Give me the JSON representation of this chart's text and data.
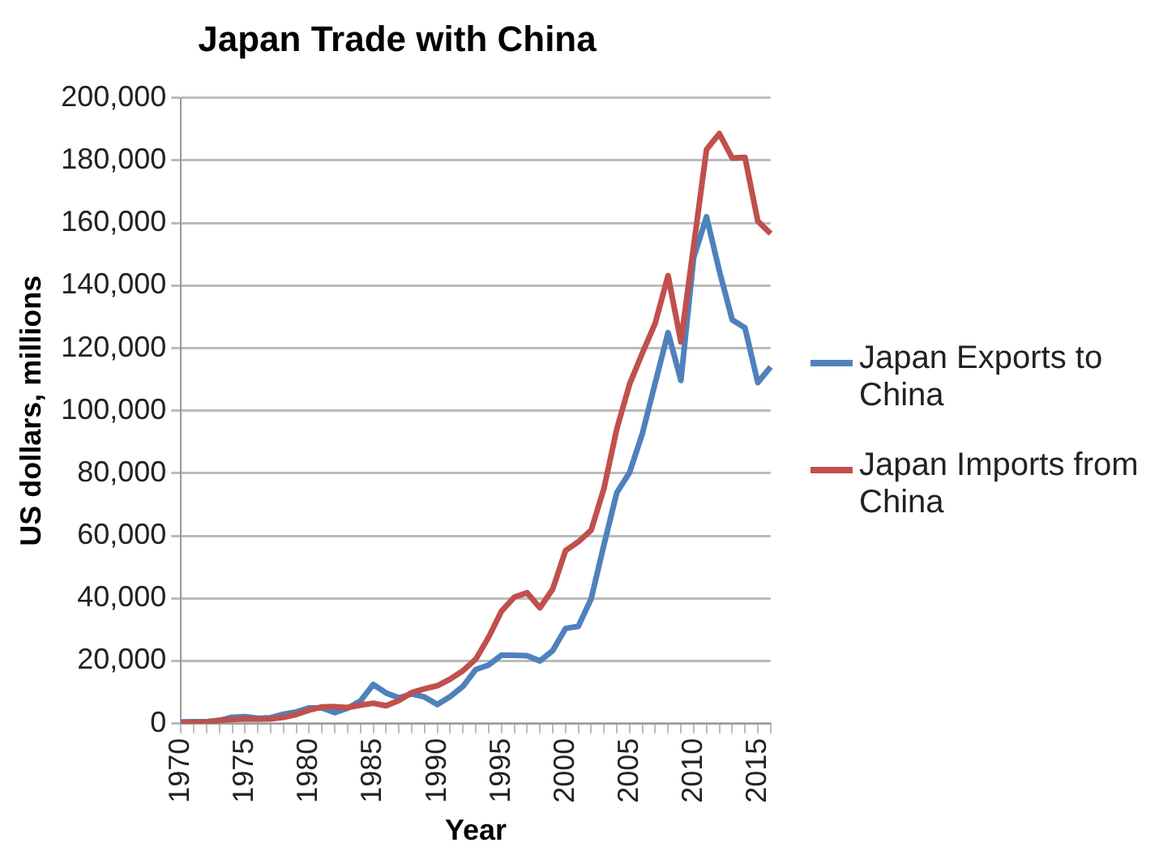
{
  "chart_data": {
    "type": "line",
    "title": "Japan Trade with China",
    "xlabel": "Year",
    "ylabel": "US dollars, millions",
    "categories": [
      "1970",
      null,
      null,
      null,
      null,
      "1975",
      null,
      null,
      null,
      null,
      "1980",
      null,
      null,
      null,
      null,
      "1985",
      null,
      null,
      null,
      null,
      "1990",
      null,
      null,
      null,
      null,
      "1995",
      null,
      null,
      null,
      null,
      "2000",
      null,
      null,
      null,
      null,
      "2005",
      null,
      null,
      null,
      null,
      "2010",
      null,
      null,
      null,
      null,
      "2015",
      null
    ],
    "series": [
      {
        "name": "Japan Exports to China",
        "color": "#4f81bd",
        "values": [
          500,
          600,
          600,
          1000,
          2000,
          2200,
          1700,
          1900,
          3000,
          3700,
          5000,
          5000,
          3500,
          4900,
          7200,
          12500,
          9800,
          8200,
          9500,
          8500,
          6100,
          8600,
          11900,
          17300,
          18700,
          21900,
          21800,
          21700,
          20000,
          23300,
          30400,
          31100,
          39900,
          57200,
          73800,
          80300,
          92800,
          109000,
          125000,
          109700,
          149000,
          162000,
          144700,
          129100,
          126500,
          109000,
          114000
        ]
      },
      {
        "name": "Japan Imports from China",
        "color": "#c0504d",
        "values": [
          300,
          300,
          500,
          1000,
          1300,
          1500,
          1400,
          1500,
          2000,
          2900,
          4300,
          5300,
          5400,
          5100,
          5900,
          6500,
          5700,
          7400,
          9900,
          11100,
          12100,
          14200,
          16900,
          20600,
          27600,
          35900,
          40400,
          41800,
          37000,
          43000,
          55300,
          58100,
          61800,
          75200,
          94200,
          108500,
          118500,
          128000,
          143200,
          122000,
          152800,
          183500,
          188600,
          180800,
          181000,
          160600,
          156600
        ]
      }
    ],
    "ylim": [
      0,
      200000
    ],
    "yticks": [
      0,
      {
        "value": 20000,
        "label": "20,000"
      },
      {
        "value": 40000,
        "label": "40,000"
      },
      {
        "value": 60000,
        "label": "60,000"
      },
      {
        "value": 80000,
        "label": "80,000"
      },
      {
        "value": 100000,
        "label": "100,000"
      },
      {
        "value": 120000,
        "label": "120,000"
      },
      {
        "value": 140000,
        "label": "140,000"
      },
      {
        "value": 160000,
        "label": "160,000"
      },
      {
        "value": 180000,
        "label": "180,000"
      },
      {
        "value": 200000,
        "label": "200,000"
      }
    ],
    "grid": "y",
    "legend": "right",
    "marker": "none",
    "line_style": "solid"
  }
}
